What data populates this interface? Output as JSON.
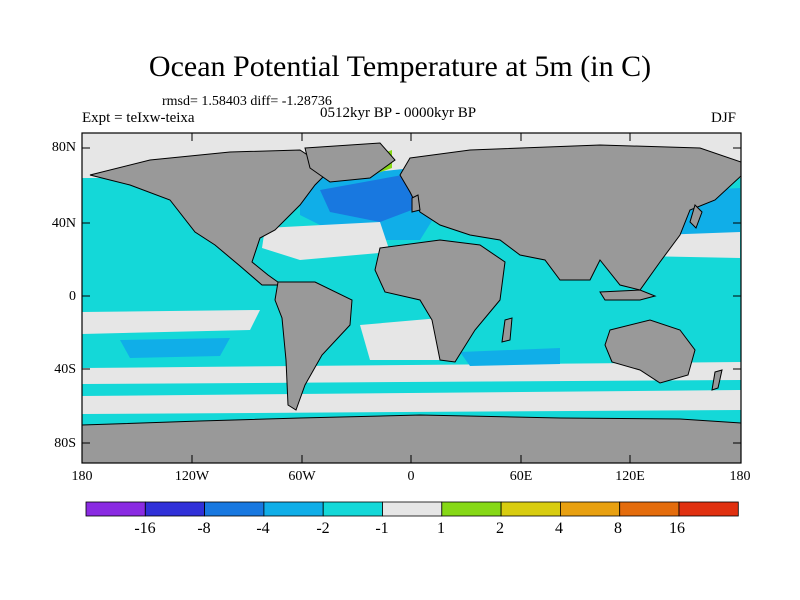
{
  "title": "Ocean Potential Temperature at 5m (in C)",
  "stats": "rmsd= 1.58403 diff= -1.28736",
  "left_label": "Expt = teIxw-teixa",
  "center_label": "0512kyr BP - 0000kyr BP",
  "right_label": "DJF",
  "y_ticks": [
    "80N",
    "40N",
    "0",
    "40S",
    "80S"
  ],
  "x_ticks": [
    "180",
    "120W",
    "60W",
    "0",
    "60E",
    "120E",
    "180"
  ],
  "colorbar": {
    "colors": [
      "#8a2be2",
      "#3030d8",
      "#1878e0",
      "#10aee8",
      "#14d8d8",
      "#e6e6e6",
      "#86d816",
      "#d8cc10",
      "#e8a010",
      "#e46c0c",
      "#e03010"
    ],
    "labels": [
      "-16",
      "-8",
      "-4",
      "-2",
      "-1",
      "1",
      "2",
      "4",
      "8",
      "16"
    ]
  },
  "map_colors": {
    "land": "#999999",
    "ice": "#e6e6e6",
    "cyan": "#14d8d8",
    "light_blue": "#10aee8",
    "blue": "#1878e0",
    "green": "#86d816",
    "coast": "#000000"
  }
}
